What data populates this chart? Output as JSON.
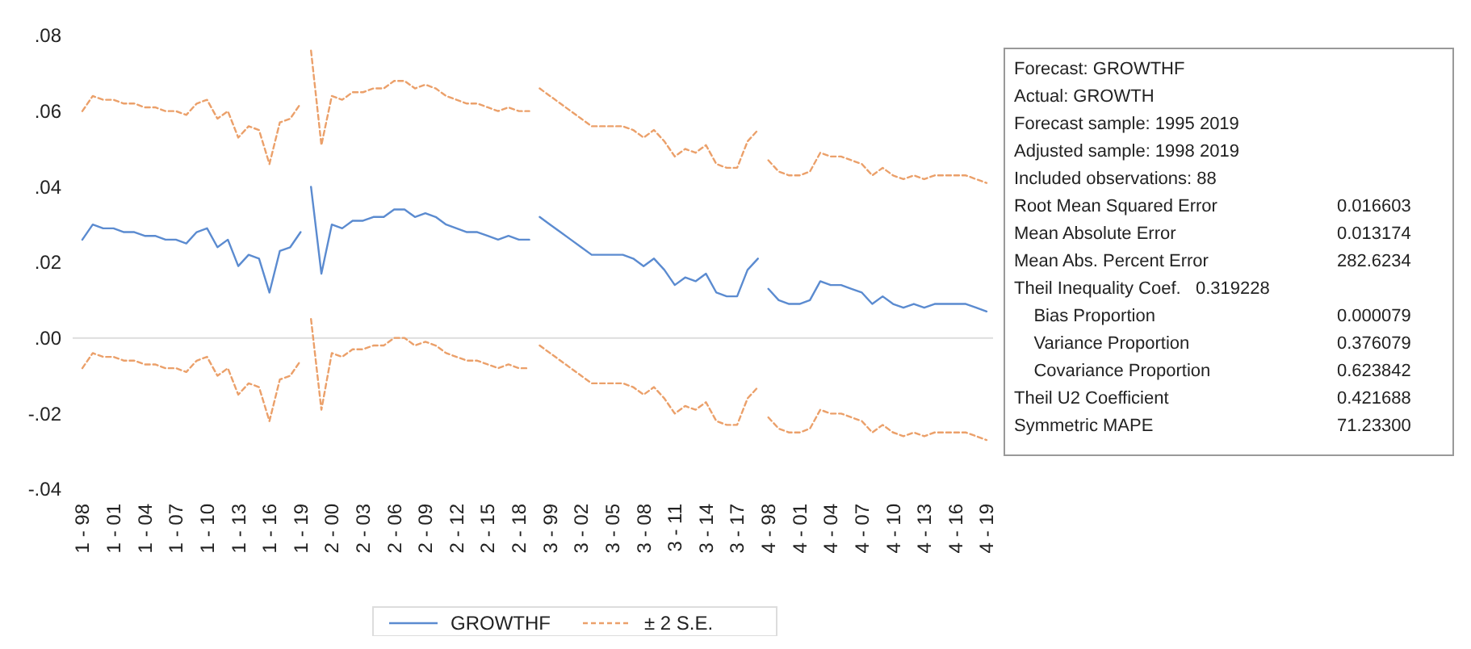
{
  "chart_data": {
    "type": "line",
    "categories": [
      "1 - 98",
      null,
      null,
      "1 - 01",
      null,
      null,
      "1 - 04",
      null,
      null,
      "1 - 07",
      null,
      null,
      "1 - 10",
      null,
      null,
      "1 - 13",
      null,
      null,
      "1 - 16",
      null,
      null,
      "1 - 19",
      null,
      null,
      "2 - 00",
      null,
      null,
      "2 - 03",
      null,
      null,
      "2 - 06",
      null,
      null,
      "2 - 09",
      null,
      null,
      "2 - 12",
      null,
      null,
      "2 - 15",
      null,
      null,
      "2 - 18",
      null,
      null,
      "3 - 99",
      null,
      null,
      "3 - 02",
      null,
      null,
      "3 - 05",
      null,
      null,
      "3 - 08",
      null,
      null,
      "3 - 11",
      null,
      null,
      "3 - 14",
      null,
      null,
      "3 - 17",
      null,
      null,
      "4 - 98",
      null,
      null,
      "4 - 01",
      null,
      null,
      "4 - 04",
      null,
      null,
      "4 - 07",
      null,
      null,
      "4 - 10",
      null,
      null,
      "4 - 13",
      null,
      null,
      "4 - 16",
      null,
      null,
      "4 - 19"
    ],
    "series": [
      {
        "name": "GROWTHF",
        "color": "#5b8bd0",
        "line_style": "solid",
        "values": [
          0.026,
          0.03,
          0.029,
          0.029,
          0.028,
          0.028,
          0.027,
          0.027,
          0.026,
          0.026,
          0.025,
          0.028,
          0.029,
          0.024,
          0.026,
          0.019,
          0.022,
          0.021,
          0.012,
          0.023,
          0.024,
          0.028,
          null,
          null,
          null,
          null,
          null,
          null,
          null,
          null,
          null,
          null,
          null,
          null,
          null,
          null,
          null,
          null,
          null,
          null,
          null,
          null,
          null,
          null,
          null,
          null,
          null,
          null,
          null,
          null,
          null,
          null,
          null,
          null,
          null,
          null,
          null,
          null,
          null,
          null,
          null,
          null,
          null,
          null,
          null,
          null,
          null,
          null,
          null,
          null,
          null,
          null,
          null,
          null,
          null,
          null,
          null,
          null,
          null,
          null,
          null,
          null,
          null,
          null,
          null,
          null,
          null,
          null
        ]
      },
      {
        "color": "#5b8bd0",
        "line_style": "solid",
        "values": [
          null,
          null,
          null,
          null,
          null,
          null,
          null,
          null,
          null,
          null,
          null,
          null,
          null,
          null,
          null,
          null,
          null,
          null,
          null,
          null,
          null,
          null,
          0.04,
          0.017,
          0.03,
          0.029,
          0.031,
          0.031,
          0.032,
          0.032,
          0.034,
          0.034,
          0.032,
          0.033,
          0.032,
          0.03,
          0.029,
          0.028,
          0.028,
          0.027,
          0.026,
          0.027,
          0.026,
          0.026,
          null,
          null,
          null,
          null,
          null,
          null,
          null,
          null,
          null,
          null,
          null,
          null,
          null,
          null,
          null,
          null,
          null,
          null,
          null,
          null,
          null,
          null,
          null,
          null,
          null,
          null,
          null,
          null,
          null,
          null,
          null,
          null,
          null,
          null,
          null,
          null,
          null,
          null,
          null,
          null,
          null,
          null,
          null,
          null
        ]
      },
      {
        "color": "#5b8bd0",
        "line_style": "solid",
        "values": [
          null,
          null,
          null,
          null,
          null,
          null,
          null,
          null,
          null,
          null,
          null,
          null,
          null,
          null,
          null,
          null,
          null,
          null,
          null,
          null,
          null,
          null,
          null,
          null,
          null,
          null,
          null,
          null,
          null,
          null,
          null,
          null,
          null,
          null,
          null,
          null,
          null,
          null,
          null,
          null,
          null,
          null,
          null,
          null,
          0.032,
          0.03,
          0.028,
          0.026,
          0.024,
          0.022,
          0.022,
          0.022,
          0.022,
          0.021,
          0.019,
          0.021,
          0.018,
          0.014,
          0.016,
          0.015,
          0.017,
          0.012,
          0.011,
          0.011,
          0.018,
          0.021,
          null,
          null,
          null,
          null,
          null,
          null,
          null,
          null,
          null,
          null,
          null,
          null,
          null,
          null,
          null,
          null,
          null,
          null,
          null,
          null,
          null,
          null
        ]
      },
      {
        "color": "#5b8bd0",
        "line_style": "solid",
        "values": [
          null,
          null,
          null,
          null,
          null,
          null,
          null,
          null,
          null,
          null,
          null,
          null,
          null,
          null,
          null,
          null,
          null,
          null,
          null,
          null,
          null,
          null,
          null,
          null,
          null,
          null,
          null,
          null,
          null,
          null,
          null,
          null,
          null,
          null,
          null,
          null,
          null,
          null,
          null,
          null,
          null,
          null,
          null,
          null,
          null,
          null,
          null,
          null,
          null,
          null,
          null,
          null,
          null,
          null,
          null,
          null,
          null,
          null,
          null,
          null,
          null,
          null,
          null,
          null,
          null,
          null,
          0.013,
          0.01,
          0.009,
          0.009,
          0.01,
          0.015,
          0.014,
          0.014,
          0.013,
          0.012,
          0.009,
          0.011,
          0.009,
          0.008,
          0.009,
          0.008,
          0.009,
          0.009,
          0.009,
          0.009,
          0.008,
          0.007
        ]
      },
      {
        "name": "± 2 S.E.",
        "color": "#eba06a",
        "line_style": "dashed",
        "values": [
          0.06,
          0.064,
          0.063,
          0.063,
          0.062,
          0.062,
          0.061,
          0.061,
          0.06,
          0.06,
          0.059,
          0.062,
          0.063,
          0.058,
          0.06,
          0.053,
          0.056,
          0.055,
          0.046,
          0.057,
          0.058,
          0.062,
          null,
          null,
          null,
          null,
          null,
          null,
          null,
          null,
          null,
          null,
          null,
          null,
          null,
          null,
          null,
          null,
          null,
          null,
          null,
          null,
          null,
          null,
          null,
          null,
          null,
          null,
          null,
          null,
          null,
          null,
          null,
          null,
          null,
          null,
          null,
          null,
          null,
          null,
          null,
          null,
          null,
          null,
          null,
          null,
          null,
          null,
          null,
          null,
          null,
          null,
          null,
          null,
          null,
          null,
          null,
          null,
          null,
          null,
          null,
          null,
          null,
          null,
          null,
          null,
          null,
          null
        ]
      },
      {
        "color": "#eba06a",
        "line_style": "dashed",
        "values": [
          null,
          null,
          null,
          null,
          null,
          null,
          null,
          null,
          null,
          null,
          null,
          null,
          null,
          null,
          null,
          null,
          null,
          null,
          null,
          null,
          null,
          null,
          0.076,
          0.051,
          0.064,
          0.063,
          0.065,
          0.065,
          0.066,
          0.066,
          0.068,
          0.068,
          0.066,
          0.067,
          0.066,
          0.064,
          0.063,
          0.062,
          0.062,
          0.061,
          0.06,
          0.061,
          0.06,
          0.06,
          null,
          null,
          null,
          null,
          null,
          null,
          null,
          null,
          null,
          null,
          null,
          null,
          null,
          null,
          null,
          null,
          null,
          null,
          null,
          null,
          null,
          null,
          null,
          null,
          null,
          null,
          null,
          null,
          null,
          null,
          null,
          null,
          null,
          null,
          null,
          null,
          null,
          null,
          null,
          null,
          null,
          null,
          null,
          null
        ]
      },
      {
        "color": "#eba06a",
        "line_style": "dashed",
        "values": [
          null,
          null,
          null,
          null,
          null,
          null,
          null,
          null,
          null,
          null,
          null,
          null,
          null,
          null,
          null,
          null,
          null,
          null,
          null,
          null,
          null,
          null,
          null,
          null,
          null,
          null,
          null,
          null,
          null,
          null,
          null,
          null,
          null,
          null,
          null,
          null,
          null,
          null,
          null,
          null,
          null,
          null,
          null,
          null,
          0.066,
          0.064,
          0.062,
          0.06,
          0.058,
          0.056,
          0.056,
          0.056,
          0.056,
          0.055,
          0.053,
          0.055,
          0.052,
          0.048,
          0.05,
          0.049,
          0.051,
          0.046,
          0.045,
          0.045,
          0.052,
          0.055,
          null,
          null,
          null,
          null,
          null,
          null,
          null,
          null,
          null,
          null,
          null,
          null,
          null,
          null,
          null,
          null,
          null,
          null,
          null,
          null,
          null,
          null
        ]
      },
      {
        "color": "#eba06a",
        "line_style": "dashed",
        "values": [
          null,
          null,
          null,
          null,
          null,
          null,
          null,
          null,
          null,
          null,
          null,
          null,
          null,
          null,
          null,
          null,
          null,
          null,
          null,
          null,
          null,
          null,
          null,
          null,
          null,
          null,
          null,
          null,
          null,
          null,
          null,
          null,
          null,
          null,
          null,
          null,
          null,
          null,
          null,
          null,
          null,
          null,
          null,
          null,
          null,
          null,
          null,
          null,
          null,
          null,
          null,
          null,
          null,
          null,
          null,
          null,
          null,
          null,
          null,
          null,
          null,
          null,
          null,
          null,
          null,
          null,
          0.047,
          0.044,
          0.043,
          0.043,
          0.044,
          0.049,
          0.048,
          0.048,
          0.047,
          0.046,
          0.043,
          0.045,
          0.043,
          0.042,
          0.043,
          0.042,
          0.043,
          0.043,
          0.043,
          0.043,
          0.042,
          0.041
        ]
      },
      {
        "color": "#eba06a",
        "line_style": "dashed",
        "values": [
          -0.008,
          -0.004,
          -0.005,
          -0.005,
          -0.006,
          -0.006,
          -0.007,
          -0.007,
          -0.008,
          -0.008,
          -0.009,
          -0.006,
          -0.005,
          -0.01,
          -0.008,
          -0.015,
          -0.012,
          -0.013,
          -0.022,
          -0.011,
          -0.01,
          -0.006,
          null,
          null,
          null,
          null,
          null,
          null,
          null,
          null,
          null,
          null,
          null,
          null,
          null,
          null,
          null,
          null,
          null,
          null,
          null,
          null,
          null,
          null,
          null,
          null,
          null,
          null,
          null,
          null,
          null,
          null,
          null,
          null,
          null,
          null,
          null,
          null,
          null,
          null,
          null,
          null,
          null,
          null,
          null,
          null,
          null,
          null,
          null,
          null,
          null,
          null,
          null,
          null,
          null,
          null,
          null,
          null,
          null,
          null,
          null,
          null,
          null,
          null,
          null,
          null,
          null,
          null
        ]
      },
      {
        "color": "#eba06a",
        "line_style": "dashed",
        "values": [
          null,
          null,
          null,
          null,
          null,
          null,
          null,
          null,
          null,
          null,
          null,
          null,
          null,
          null,
          null,
          null,
          null,
          null,
          null,
          null,
          null,
          null,
          0.005,
          -0.019,
          -0.004,
          -0.005,
          -0.003,
          -0.003,
          -0.002,
          -0.002,
          0.0,
          0.0,
          -0.002,
          -0.001,
          -0.002,
          -0.004,
          -0.005,
          -0.006,
          -0.006,
          -0.007,
          -0.008,
          -0.007,
          -0.008,
          -0.008,
          null,
          null,
          null,
          null,
          null,
          null,
          null,
          null,
          null,
          null,
          null,
          null,
          null,
          null,
          null,
          null,
          null,
          null,
          null,
          null,
          null,
          null,
          null,
          null,
          null,
          null,
          null,
          null,
          null,
          null,
          null,
          null,
          null,
          null,
          null,
          null,
          null,
          null,
          null,
          null,
          null,
          null,
          null,
          null
        ]
      },
      {
        "color": "#eba06a",
        "line_style": "dashed",
        "values": [
          null,
          null,
          null,
          null,
          null,
          null,
          null,
          null,
          null,
          null,
          null,
          null,
          null,
          null,
          null,
          null,
          null,
          null,
          null,
          null,
          null,
          null,
          null,
          null,
          null,
          null,
          null,
          null,
          null,
          null,
          null,
          null,
          null,
          null,
          null,
          null,
          null,
          null,
          null,
          null,
          null,
          null,
          null,
          null,
          -0.002,
          -0.004,
          -0.006,
          -0.008,
          -0.01,
          -0.012,
          -0.012,
          -0.012,
          -0.012,
          -0.013,
          -0.015,
          -0.013,
          -0.016,
          -0.02,
          -0.018,
          -0.019,
          -0.017,
          -0.022,
          -0.023,
          -0.023,
          -0.016,
          -0.013,
          null,
          null,
          null,
          null,
          null,
          null,
          null,
          null,
          null,
          null,
          null,
          null,
          null,
          null,
          null,
          null,
          null,
          null,
          null,
          null,
          null,
          null
        ]
      },
      {
        "color": "#eba06a",
        "line_style": "dashed",
        "values": [
          null,
          null,
          null,
          null,
          null,
          null,
          null,
          null,
          null,
          null,
          null,
          null,
          null,
          null,
          null,
          null,
          null,
          null,
          null,
          null,
          null,
          null,
          null,
          null,
          null,
          null,
          null,
          null,
          null,
          null,
          null,
          null,
          null,
          null,
          null,
          null,
          null,
          null,
          null,
          null,
          null,
          null,
          null,
          null,
          null,
          null,
          null,
          null,
          null,
          null,
          null,
          null,
          null,
          null,
          null,
          null,
          null,
          null,
          null,
          null,
          null,
          null,
          null,
          null,
          null,
          null,
          -0.021,
          -0.024,
          -0.025,
          -0.025,
          -0.024,
          -0.019,
          -0.02,
          -0.02,
          -0.021,
          -0.022,
          -0.025,
          -0.023,
          -0.025,
          -0.026,
          -0.025,
          -0.026,
          -0.025,
          -0.025,
          -0.025,
          -0.025,
          -0.026,
          -0.027
        ]
      }
    ],
    "ylim": [
      -0.04,
      0.08
    ],
    "yticks": [
      {
        "value": 0.08,
        "label": ".08"
      },
      {
        "value": 0.06,
        "label": ".06"
      },
      {
        "value": 0.04,
        "label": ".04"
      },
      {
        "value": 0.02,
        "label": ".02"
      },
      {
        "value": 0,
        "label": ".00"
      },
      {
        "value": -0.02,
        "label": "-.02"
      },
      {
        "value": -0.04,
        "label": "-.04"
      }
    ],
    "ref_lines": [
      {
        "axis": "y",
        "value": 0,
        "color": "#dddddd"
      }
    ],
    "legend": "bottom",
    "annotations": [
      "Forecast: GROWTHF",
      "Actual: GROWTH",
      "Forecast sample: 1995 2019",
      "Adjusted sample: 1998 2019",
      "Included observations: 88",
      "Root Mean Squared Error\t0.016603",
      "Mean Absolute Error\t0.013174",
      "Mean Abs. Percent Error\t282.6234",
      "Theil Inequality Coef.   0.319228",
      "    Bias Proportion\t0.000079",
      "    Variance Proportion\t0.376079",
      "    Covariance Proportion\t0.623842",
      "Theil U2 Coefficient\t0.421688",
      "Symmetric MAPE\t71.23300"
    ]
  }
}
